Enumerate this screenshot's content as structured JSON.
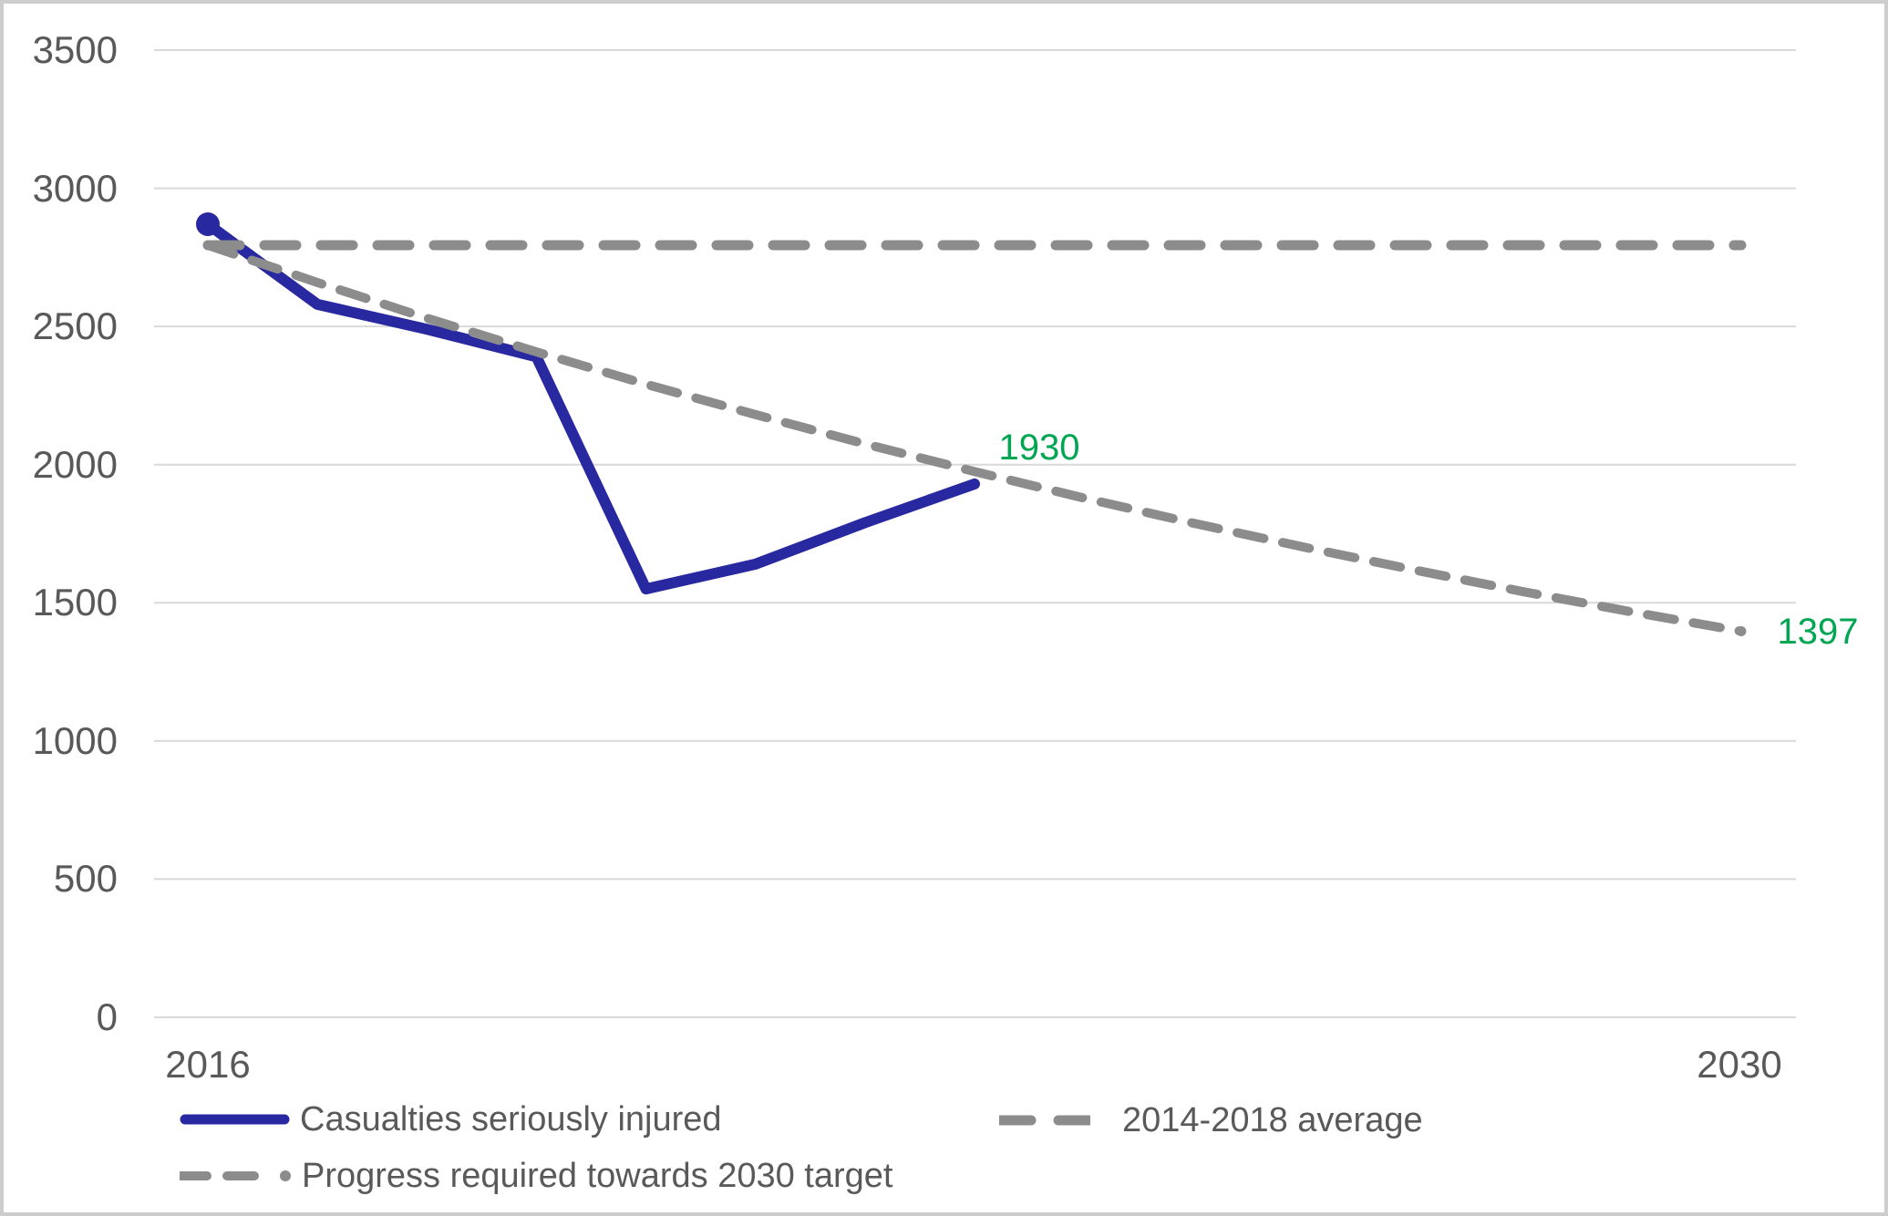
{
  "colors": {
    "blue": "#2828A0",
    "gray": "#8C8C8C",
    "green": "#00A651",
    "axis_text": "#595959",
    "gridline": "#D9D9D9",
    "border": "#CDCDCD"
  },
  "chart_data": {
    "type": "line",
    "title": "",
    "xlabel": "",
    "ylabel": "",
    "xlim": [
      2016,
      2030
    ],
    "ylim": [
      0,
      3500
    ],
    "grid": "horizontal",
    "yticks": [
      0,
      500,
      1000,
      1500,
      2000,
      2500,
      3000,
      3500
    ],
    "xtick_labels": [
      "2016",
      "2030"
    ],
    "legend_position": "bottom",
    "series": [
      {
        "name": "Casualties seriously injured",
        "line_style": "solid",
        "color_key": "blue",
        "x": [
          2016,
          2017,
          2018,
          2019,
          2020,
          2021,
          2022,
          2023
        ],
        "values": [
          2870,
          2580,
          2490,
          2390,
          1550,
          1640,
          1790,
          1930
        ],
        "first_point_marker": true,
        "end_label": "1930"
      },
      {
        "name": "2014-2018 average",
        "line_style": "dashed_long",
        "color_key": "gray",
        "x": [
          2016,
          2030
        ],
        "values": [
          2794,
          2794
        ]
      },
      {
        "name": "Progress required towards 2030 target",
        "line_style": "dashed_short",
        "color_key": "gray",
        "x": [
          2016,
          2017,
          2018,
          2019,
          2020,
          2021,
          2022,
          2023,
          2024,
          2025,
          2026,
          2027,
          2028,
          2029,
          2030
        ],
        "values": [
          2794,
          2659,
          2530,
          2408,
          2291,
          2181,
          2075,
          1975,
          1879,
          1788,
          1702,
          1620,
          1541,
          1467,
          1397
        ],
        "end_point_marker": true,
        "end_label": "1397"
      }
    ]
  },
  "legend": {
    "item1": "Casualties seriously injured",
    "item2": "2014-2018 average",
    "item3": "Progress required towards 2030 target"
  }
}
